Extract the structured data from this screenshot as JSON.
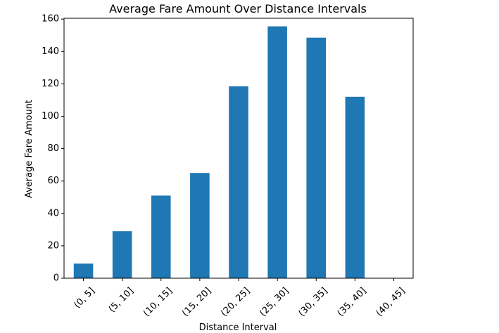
{
  "chart_data": {
    "type": "bar",
    "title": "Average Fare Amount Over Distance Intervals",
    "xlabel": "Distance Interval",
    "ylabel": "Average Fare Amount",
    "categories": [
      "(0, 5]",
      "(5, 10]",
      "(10, 15]",
      "(15, 20]",
      "(20, 25]",
      "(25, 30]",
      "(30, 35]",
      "(35, 40]",
      "(40, 45]"
    ],
    "values": [
      9,
      29,
      51,
      65,
      118.5,
      155.5,
      148.5,
      112,
      0
    ],
    "ylim": [
      0,
      160.5
    ],
    "yticks": [
      0,
      20,
      40,
      60,
      80,
      100,
      120,
      140,
      160
    ],
    "bar_color": "#1f77b4",
    "grid": false,
    "legend": "none"
  }
}
